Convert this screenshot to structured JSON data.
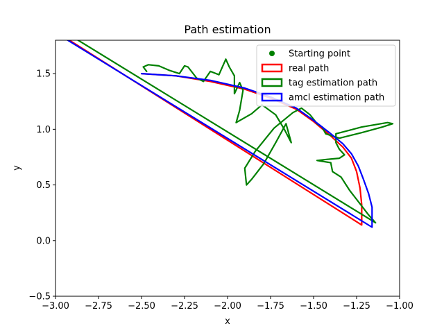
{
  "chart_data": {
    "type": "line",
    "title": "Path estimation",
    "xlabel": "x",
    "ylabel": "y",
    "xlim": [
      -3.0,
      -1.0
    ],
    "ylim": [
      -0.5,
      1.8
    ],
    "xticks": [
      -3.0,
      -2.75,
      -2.5,
      -2.25,
      -2.0,
      -1.75,
      -1.5,
      -1.25,
      -1.0
    ],
    "xtick_labels": [
      "−3.00",
      "−2.75",
      "−2.50",
      "−2.25",
      "−2.00",
      "−1.75",
      "−1.50",
      "−1.25",
      "−1.00"
    ],
    "yticks": [
      -0.5,
      0.0,
      0.5,
      1.0,
      1.5
    ],
    "ytick_labels": [
      "−0.5",
      "0.0",
      "0.5",
      "1.0",
      "1.5"
    ],
    "grid": false,
    "legend_position": "top-right",
    "legend": [
      {
        "label": "Starting point",
        "kind": "marker",
        "color": "#008000"
      },
      {
        "label": "real path",
        "kind": "patch",
        "color": "#ff0000"
      },
      {
        "label": "tag estimation path",
        "kind": "patch",
        "color": "#008000"
      },
      {
        "label": "amcl estimation path",
        "kind": "patch",
        "color": "#0000ff"
      }
    ],
    "series": [
      {
        "name": "real path",
        "color": "#ff0000",
        "points": [
          [
            -2.5,
            1.5
          ],
          [
            -2.3,
            1.48
          ],
          [
            -2.1,
            1.43
          ],
          [
            -1.9,
            1.36
          ],
          [
            -1.75,
            1.28
          ],
          [
            -1.6,
            1.18
          ],
          [
            -1.5,
            1.07
          ],
          [
            -1.4,
            0.94
          ],
          [
            -1.33,
            0.84
          ],
          [
            -1.28,
            0.74
          ],
          [
            -1.25,
            0.62
          ],
          [
            -1.23,
            0.47
          ],
          [
            -1.22,
            0.32
          ],
          [
            -1.22,
            0.14
          ],
          [
            -2.95,
            1.83
          ]
        ]
      },
      {
        "name": "tag estimation path",
        "color": "#008000",
        "points": [
          [
            -2.47,
            1.52
          ],
          [
            -2.49,
            1.56
          ],
          [
            -2.46,
            1.58
          ],
          [
            -2.4,
            1.57
          ],
          [
            -2.34,
            1.53
          ],
          [
            -2.28,
            1.5
          ],
          [
            -2.25,
            1.57
          ],
          [
            -2.23,
            1.56
          ],
          [
            -2.18,
            1.46
          ],
          [
            -2.14,
            1.43
          ],
          [
            -2.1,
            1.52
          ],
          [
            -2.05,
            1.49
          ],
          [
            -2.01,
            1.63
          ],
          [
            -1.99,
            1.56
          ],
          [
            -1.96,
            1.48
          ],
          [
            -1.96,
            1.32
          ],
          [
            -1.93,
            1.42
          ],
          [
            -1.91,
            1.35
          ],
          [
            -1.93,
            1.17
          ],
          [
            -1.95,
            1.06
          ],
          [
            -1.86,
            1.14
          ],
          [
            -1.8,
            1.22
          ],
          [
            -1.72,
            1.13
          ],
          [
            -1.67,
            1.0
          ],
          [
            -1.63,
            0.88
          ],
          [
            -1.66,
            1.05
          ],
          [
            -1.72,
            0.88
          ],
          [
            -1.79,
            0.69
          ],
          [
            -1.86,
            0.55
          ],
          [
            -1.89,
            0.5
          ],
          [
            -1.9,
            0.65
          ],
          [
            -1.84,
            0.8
          ],
          [
            -1.73,
            1.01
          ],
          [
            -1.62,
            1.15
          ],
          [
            -1.57,
            1.19
          ],
          [
            -1.52,
            1.13
          ],
          [
            -1.48,
            1.05
          ],
          [
            -1.45,
            1.02
          ],
          [
            -1.43,
            0.96
          ],
          [
            -1.35,
            0.92
          ],
          [
            -1.22,
            0.97
          ],
          [
            -1.1,
            1.02
          ],
          [
            -1.04,
            1.05
          ],
          [
            -1.07,
            1.06
          ],
          [
            -1.22,
            1.02
          ],
          [
            -1.37,
            0.96
          ],
          [
            -1.37,
            0.88
          ],
          [
            -1.35,
            0.82
          ],
          [
            -1.32,
            0.77
          ],
          [
            -1.35,
            0.74
          ],
          [
            -1.42,
            0.73
          ],
          [
            -1.48,
            0.72
          ],
          [
            -1.4,
            0.7
          ],
          [
            -1.39,
            0.62
          ],
          [
            -1.34,
            0.57
          ],
          [
            -1.29,
            0.45
          ],
          [
            -1.23,
            0.33
          ],
          [
            -1.18,
            0.23
          ],
          [
            -1.14,
            0.16
          ],
          [
            -2.9,
            1.83
          ]
        ]
      },
      {
        "name": "amcl estimation path",
        "color": "#0000ff",
        "points": [
          [
            -2.5,
            1.5
          ],
          [
            -2.3,
            1.48
          ],
          [
            -2.1,
            1.44
          ],
          [
            -1.9,
            1.37
          ],
          [
            -1.75,
            1.29
          ],
          [
            -1.6,
            1.19
          ],
          [
            -1.5,
            1.08
          ],
          [
            -1.4,
            0.96
          ],
          [
            -1.33,
            0.87
          ],
          [
            -1.28,
            0.78
          ],
          [
            -1.24,
            0.67
          ],
          [
            -1.21,
            0.55
          ],
          [
            -1.18,
            0.42
          ],
          [
            -1.16,
            0.3
          ],
          [
            -1.16,
            0.12
          ],
          [
            -2.96,
            1.83
          ]
        ]
      }
    ],
    "starting_point": [
      -2.93,
      1.82
    ]
  }
}
